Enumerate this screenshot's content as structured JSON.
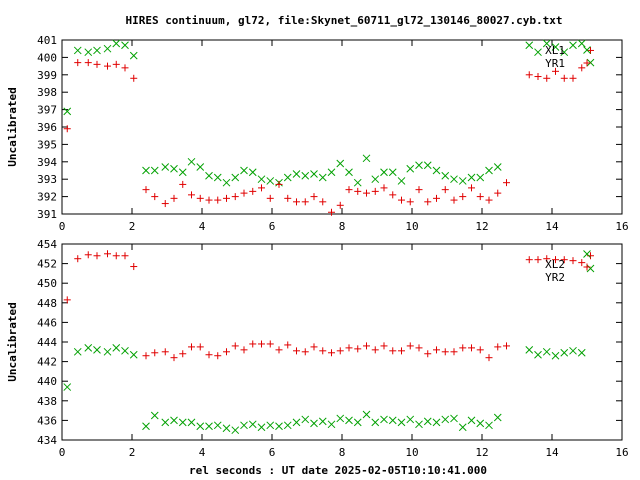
{
  "chart_data": [
    {
      "type": "scatter",
      "title": "HIRES continuum, gl72, file:Skynet_60711_gl72_130146_80027.cyb.txt",
      "xlabel": "",
      "ylabel": "Uncalibrated",
      "xlim": [
        0,
        16
      ],
      "ylim": [
        391,
        401
      ],
      "xticks": [
        "0",
        "2",
        "4",
        "6",
        "8",
        "10",
        "12",
        "14",
        "16"
      ],
      "yticks": [
        "391",
        "392",
        "393",
        "394",
        "395",
        "396",
        "397",
        "398",
        "399",
        "400",
        "401"
      ],
      "legend_position": "top-right",
      "series": [
        {
          "name": "XL1",
          "color": "#00a000",
          "marker": "x",
          "points": [
            [
              0.15,
              396.9
            ],
            [
              0.45,
              400.4
            ],
            [
              0.75,
              400.3
            ],
            [
              1.0,
              400.4
            ],
            [
              1.3,
              400.5
            ],
            [
              1.55,
              400.8
            ],
            [
              1.8,
              400.7
            ],
            [
              2.05,
              400.1
            ],
            [
              2.4,
              393.5
            ],
            [
              2.65,
              393.5
            ],
            [
              2.95,
              393.7
            ],
            [
              3.2,
              393.6
            ],
            [
              3.45,
              393.4
            ],
            [
              3.7,
              394.0
            ],
            [
              3.95,
              393.7
            ],
            [
              4.2,
              393.2
            ],
            [
              4.45,
              393.1
            ],
            [
              4.7,
              392.8
            ],
            [
              4.95,
              393.1
            ],
            [
              5.2,
              393.5
            ],
            [
              5.45,
              393.4
            ],
            [
              5.7,
              393.0
            ],
            [
              5.95,
              392.9
            ],
            [
              6.2,
              392.8
            ],
            [
              6.45,
              393.1
            ],
            [
              6.7,
              393.3
            ],
            [
              6.95,
              393.2
            ],
            [
              7.2,
              393.3
            ],
            [
              7.45,
              393.1
            ],
            [
              7.7,
              393.4
            ],
            [
              7.95,
              393.9
            ],
            [
              8.2,
              393.4
            ],
            [
              8.45,
              392.8
            ],
            [
              8.7,
              394.2
            ],
            [
              8.95,
              393.0
            ],
            [
              9.2,
              393.4
            ],
            [
              9.45,
              393.4
            ],
            [
              9.7,
              392.9
            ],
            [
              9.95,
              393.6
            ],
            [
              10.2,
              393.8
            ],
            [
              10.45,
              393.8
            ],
            [
              10.7,
              393.5
            ],
            [
              10.95,
              393.2
            ],
            [
              11.2,
              393.0
            ],
            [
              11.45,
              392.9
            ],
            [
              11.7,
              393.1
            ],
            [
              11.95,
              393.1
            ],
            [
              12.2,
              393.5
            ],
            [
              12.45,
              393.7
            ],
            [
              13.35,
              400.7
            ],
            [
              13.6,
              400.3
            ],
            [
              13.85,
              400.8
            ],
            [
              14.1,
              400.6
            ],
            [
              14.35,
              400.3
            ],
            [
              14.6,
              400.7
            ],
            [
              14.85,
              400.8
            ],
            [
              15.1,
              399.7
            ]
          ]
        },
        {
          "name": "YR1",
          "color": "#e00000",
          "marker": "+",
          "points": [
            [
              0.15,
              395.9
            ],
            [
              0.45,
              399.7
            ],
            [
              0.75,
              399.7
            ],
            [
              1.0,
              399.6
            ],
            [
              1.3,
              399.5
            ],
            [
              1.55,
              399.6
            ],
            [
              1.8,
              399.4
            ],
            [
              2.05,
              398.8
            ],
            [
              2.4,
              392.4
            ],
            [
              2.65,
              392.0
            ],
            [
              2.95,
              391.6
            ],
            [
              3.2,
              391.9
            ],
            [
              3.45,
              392.7
            ],
            [
              3.7,
              392.1
            ],
            [
              3.95,
              391.9
            ],
            [
              4.2,
              391.8
            ],
            [
              4.45,
              391.8
            ],
            [
              4.7,
              391.9
            ],
            [
              4.95,
              392.0
            ],
            [
              5.2,
              392.2
            ],
            [
              5.45,
              392.3
            ],
            [
              5.7,
              392.5
            ],
            [
              5.95,
              391.9
            ],
            [
              6.2,
              392.7
            ],
            [
              6.45,
              391.9
            ],
            [
              6.7,
              391.7
            ],
            [
              6.95,
              391.7
            ],
            [
              7.2,
              392.0
            ],
            [
              7.45,
              391.7
            ],
            [
              7.7,
              391.1
            ],
            [
              7.95,
              391.5
            ],
            [
              8.2,
              392.4
            ],
            [
              8.45,
              392.3
            ],
            [
              8.7,
              392.2
            ],
            [
              8.95,
              392.3
            ],
            [
              9.2,
              392.5
            ],
            [
              9.45,
              392.1
            ],
            [
              9.7,
              391.8
            ],
            [
              9.95,
              391.7
            ],
            [
              10.2,
              392.4
            ],
            [
              10.45,
              391.7
            ],
            [
              10.7,
              391.9
            ],
            [
              10.95,
              392.4
            ],
            [
              11.2,
              391.8
            ],
            [
              11.45,
              392.0
            ],
            [
              11.7,
              392.5
            ],
            [
              11.95,
              392.0
            ],
            [
              12.2,
              391.8
            ],
            [
              12.45,
              392.2
            ],
            [
              12.7,
              392.8
            ],
            [
              13.35,
              399.0
            ],
            [
              13.6,
              398.9
            ],
            [
              13.85,
              398.8
            ],
            [
              14.1,
              399.2
            ],
            [
              14.35,
              398.8
            ],
            [
              14.6,
              398.8
            ],
            [
              14.85,
              399.4
            ],
            [
              15.1,
              400.4
            ]
          ]
        }
      ]
    },
    {
      "type": "scatter",
      "title": "",
      "xlabel": "rel seconds : UT date 2025-02-05T10:10:41.000",
      "ylabel": "Uncalibrated",
      "xlim": [
        0,
        16
      ],
      "ylim": [
        434,
        454
      ],
      "xticks": [
        "0",
        "2",
        "4",
        "6",
        "8",
        "10",
        "12",
        "14",
        "16"
      ],
      "yticks": [
        "434",
        "436",
        "438",
        "440",
        "442",
        "444",
        "446",
        "448",
        "450",
        "452",
        "454"
      ],
      "legend_position": "top-right",
      "series": [
        {
          "name": "XL2",
          "color": "#00a000",
          "marker": "x",
          "points": [
            [
              0.15,
              439.4
            ],
            [
              0.45,
              443.0
            ],
            [
              0.75,
              443.4
            ],
            [
              1.0,
              443.2
            ],
            [
              1.3,
              443.0
            ],
            [
              1.55,
              443.4
            ],
            [
              1.8,
              443.1
            ],
            [
              2.05,
              442.7
            ],
            [
              2.4,
              435.4
            ],
            [
              2.65,
              436.5
            ],
            [
              2.95,
              435.8
            ],
            [
              3.2,
              436.0
            ],
            [
              3.45,
              435.8
            ],
            [
              3.7,
              435.8
            ],
            [
              3.95,
              435.4
            ],
            [
              4.2,
              435.4
            ],
            [
              4.45,
              435.5
            ],
            [
              4.7,
              435.2
            ],
            [
              4.95,
              435.0
            ],
            [
              5.2,
              435.5
            ],
            [
              5.45,
              435.6
            ],
            [
              5.7,
              435.3
            ],
            [
              5.95,
              435.5
            ],
            [
              6.2,
              435.4
            ],
            [
              6.45,
              435.5
            ],
            [
              6.7,
              435.8
            ],
            [
              6.95,
              436.1
            ],
            [
              7.2,
              435.7
            ],
            [
              7.45,
              435.9
            ],
            [
              7.7,
              435.6
            ],
            [
              7.95,
              436.2
            ],
            [
              8.2,
              436.0
            ],
            [
              8.45,
              435.8
            ],
            [
              8.7,
              436.6
            ],
            [
              8.95,
              435.8
            ],
            [
              9.2,
              436.1
            ],
            [
              9.45,
              436.0
            ],
            [
              9.7,
              435.8
            ],
            [
              9.95,
              436.1
            ],
            [
              10.2,
              435.6
            ],
            [
              10.45,
              435.9
            ],
            [
              10.7,
              435.8
            ],
            [
              10.95,
              436.1
            ],
            [
              11.2,
              436.2
            ],
            [
              11.45,
              435.3
            ],
            [
              11.7,
              436.0
            ],
            [
              11.95,
              435.7
            ],
            [
              12.2,
              435.5
            ],
            [
              12.45,
              436.3
            ],
            [
              13.35,
              443.2
            ],
            [
              13.6,
              442.7
            ],
            [
              13.85,
              443.0
            ],
            [
              14.1,
              442.6
            ],
            [
              14.35,
              442.9
            ],
            [
              14.6,
              443.1
            ],
            [
              14.85,
              442.9
            ],
            [
              15.1,
              451.5
            ]
          ]
        },
        {
          "name": "YR2",
          "color": "#e00000",
          "marker": "+",
          "points": [
            [
              0.15,
              448.3
            ],
            [
              0.45,
              452.5
            ],
            [
              0.75,
              452.9
            ],
            [
              1.0,
              452.8
            ],
            [
              1.3,
              453.0
            ],
            [
              1.55,
              452.8
            ],
            [
              1.8,
              452.8
            ],
            [
              2.05,
              451.7
            ],
            [
              2.4,
              442.6
            ],
            [
              2.65,
              442.9
            ],
            [
              2.95,
              443.0
            ],
            [
              3.2,
              442.4
            ],
            [
              3.45,
              442.8
            ],
            [
              3.7,
              443.5
            ],
            [
              3.95,
              443.5
            ],
            [
              4.2,
              442.7
            ],
            [
              4.45,
              442.6
            ],
            [
              4.7,
              443.0
            ],
            [
              4.95,
              443.6
            ],
            [
              5.2,
              443.2
            ],
            [
              5.45,
              443.8
            ],
            [
              5.7,
              443.8
            ],
            [
              5.95,
              443.8
            ],
            [
              6.2,
              443.2
            ],
            [
              6.45,
              443.7
            ],
            [
              6.7,
              443.1
            ],
            [
              6.95,
              443.0
            ],
            [
              7.2,
              443.5
            ],
            [
              7.45,
              443.1
            ],
            [
              7.7,
              442.9
            ],
            [
              7.95,
              443.1
            ],
            [
              8.2,
              443.4
            ],
            [
              8.45,
              443.3
            ],
            [
              8.7,
              443.6
            ],
            [
              8.95,
              443.2
            ],
            [
              9.2,
              443.6
            ],
            [
              9.45,
              443.1
            ],
            [
              9.7,
              443.1
            ],
            [
              9.95,
              443.6
            ],
            [
              10.2,
              443.4
            ],
            [
              10.45,
              442.8
            ],
            [
              10.7,
              443.2
            ],
            [
              10.95,
              443.0
            ],
            [
              11.2,
              443.0
            ],
            [
              11.45,
              443.4
            ],
            [
              11.7,
              443.4
            ],
            [
              11.95,
              443.2
            ],
            [
              12.2,
              442.4
            ],
            [
              12.45,
              443.5
            ],
            [
              12.7,
              443.6
            ],
            [
              13.35,
              452.4
            ],
            [
              13.6,
              452.4
            ],
            [
              13.85,
              452.5
            ],
            [
              14.1,
              452.4
            ],
            [
              14.35,
              452.4
            ],
            [
              14.6,
              452.3
            ],
            [
              14.85,
              452.1
            ],
            [
              15.1,
              452.8
            ]
          ]
        }
      ]
    }
  ]
}
